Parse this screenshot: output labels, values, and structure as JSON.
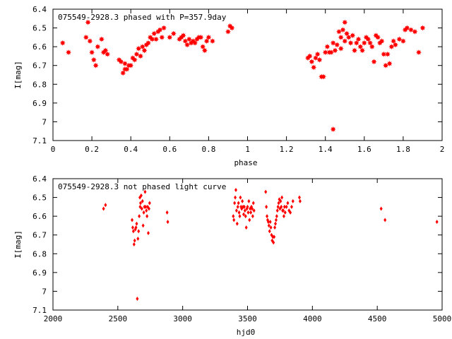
{
  "chart_data": [
    {
      "type": "scatter",
      "title": "075549-2928.3 phased with P=357.9day",
      "xlabel": "phase",
      "ylabel": "I[mag]",
      "xlim": [
        0,
        2
      ],
      "ylim": [
        6.4,
        7.1
      ],
      "y_inverted": true,
      "x_ticks": [
        "0",
        "0.2",
        "0.4",
        "0.6",
        "0.8",
        "1",
        "1.2",
        "1.4",
        "1.6",
        "1.8",
        "2"
      ],
      "y_ticks": [
        "6.4",
        "6.5",
        "6.6",
        "6.7",
        "6.8",
        "6.9",
        "7",
        "7.1"
      ],
      "grid": false,
      "marker": "filled-star",
      "color": "#ff0000",
      "series": [
        {
          "x": [
            0.05,
            0.08,
            0.17,
            0.18,
            0.19,
            0.2,
            0.21,
            0.22,
            0.23,
            0.25,
            0.26,
            0.27,
            0.28,
            0.34,
            0.35,
            0.36,
            0.37,
            0.37,
            0.38,
            0.39,
            0.4,
            0.41,
            0.42,
            0.43,
            0.44,
            0.45,
            0.46,
            0.47,
            0.48,
            0.49,
            0.5,
            0.51,
            0.52,
            0.53,
            0.54,
            0.55,
            0.56,
            0.57,
            0.6,
            0.62,
            0.65,
            0.66,
            0.67,
            0.68,
            0.69,
            0.7,
            0.71,
            0.72,
            0.73,
            0.74,
            0.75,
            0.76,
            0.77,
            0.78,
            0.79,
            0.8,
            0.82,
            0.9,
            0.91,
            0.92,
            1.31,
            1.32,
            1.33,
            1.34,
            1.35,
            1.36,
            1.37,
            1.38,
            1.39,
            1.4,
            1.41,
            1.42,
            1.43,
            1.44,
            1.44,
            1.45,
            1.46,
            1.47,
            1.48,
            1.48,
            1.49,
            1.5,
            1.5,
            1.51,
            1.52,
            1.53,
            1.54,
            1.55,
            1.56,
            1.57,
            1.58,
            1.59,
            1.6,
            1.61,
            1.62,
            1.63,
            1.64,
            1.65,
            1.66,
            1.67,
            1.68,
            1.69,
            1.7,
            1.71,
            1.72,
            1.73,
            1.74,
            1.75,
            1.76,
            1.78,
            1.8,
            1.81,
            1.82,
            1.84,
            1.86,
            1.88,
            1.9
          ],
          "y": [
            6.58,
            6.63,
            6.55,
            6.47,
            6.57,
            6.63,
            6.67,
            6.7,
            6.6,
            6.56,
            6.63,
            6.62,
            6.64,
            6.67,
            6.68,
            6.74,
            6.72,
            6.69,
            6.72,
            6.7,
            6.7,
            6.66,
            6.67,
            6.64,
            6.61,
            6.65,
            6.6,
            6.62,
            6.59,
            6.58,
            6.55,
            6.56,
            6.53,
            6.56,
            6.52,
            6.51,
            6.55,
            6.5,
            6.55,
            6.53,
            6.56,
            6.55,
            6.54,
            6.57,
            6.59,
            6.56,
            6.58,
            6.57,
            6.58,
            6.56,
            6.55,
            6.55,
            6.6,
            6.62,
            6.57,
            6.55,
            6.57,
            6.52,
            6.49,
            6.5,
            6.66,
            6.65,
            6.68,
            6.71,
            6.66,
            6.64,
            6.67,
            6.76,
            6.76,
            6.63,
            6.6,
            6.63,
            6.63,
            7.04,
            6.58,
            6.62,
            6.59,
            6.52,
            6.55,
            6.61,
            6.51,
            6.47,
            6.57,
            6.53,
            6.55,
            6.58,
            6.54,
            6.62,
            6.58,
            6.56,
            6.6,
            6.62,
            6.58,
            6.55,
            6.56,
            6.58,
            6.6,
            6.68,
            6.54,
            6.55,
            6.58,
            6.57,
            6.64,
            6.7,
            6.64,
            6.69,
            6.6,
            6.57,
            6.59,
            6.56,
            6.57,
            6.51,
            6.5,
            6.51,
            6.52,
            6.63,
            6.5
          ]
        }
      ]
    },
    {
      "type": "scatter",
      "title": "075549-2928.3 not phased light curve",
      "xlabel": "hjd0",
      "ylabel": "I[mag]",
      "xlim": [
        2000,
        5000
      ],
      "ylim": [
        6.4,
        7.1
      ],
      "y_inverted": true,
      "x_ticks": [
        "2000",
        "2500",
        "3000",
        "3500",
        "4000",
        "4500",
        "5000"
      ],
      "y_ticks": [
        "6.4",
        "6.5",
        "6.6",
        "6.7",
        "6.8",
        "6.9",
        "7",
        "7.1"
      ],
      "grid": false,
      "marker": "diamond",
      "color": "#ff0000",
      "series": [
        {
          "x": [
            2390,
            2405,
            2610,
            2615,
            2620,
            2625,
            2630,
            2635,
            2640,
            2645,
            2650,
            2655,
            2660,
            2665,
            2670,
            2672,
            2675,
            2680,
            2685,
            2690,
            2695,
            2700,
            2705,
            2710,
            2715,
            2720,
            2725,
            2730,
            2735,
            2740,
            2745,
            2880,
            2885,
            3390,
            3395,
            3400,
            3405,
            3410,
            3415,
            3420,
            3425,
            3430,
            3435,
            3440,
            3445,
            3450,
            3455,
            3460,
            3465,
            3470,
            3475,
            3480,
            3485,
            3490,
            3495,
            3500,
            3505,
            3510,
            3515,
            3520,
            3525,
            3530,
            3535,
            3540,
            3545,
            3550,
            3640,
            3645,
            3650,
            3655,
            3660,
            3665,
            3670,
            3675,
            3680,
            3685,
            3690,
            3695,
            3700,
            3705,
            3710,
            3715,
            3720,
            3725,
            3730,
            3735,
            3740,
            3745,
            3750,
            3755,
            3760,
            3765,
            3770,
            3775,
            3780,
            3785,
            3790,
            3800,
            3810,
            3820,
            3830,
            3840,
            3850,
            3900,
            3905,
            4530,
            4560,
            4960
          ],
          "y": [
            6.56,
            6.54,
            6.62,
            6.66,
            6.68,
            6.75,
            6.73,
            6.67,
            6.66,
            6.64,
            7.04,
            6.72,
            6.68,
            6.6,
            6.5,
            6.55,
            6.53,
            6.49,
            6.56,
            6.52,
            6.65,
            6.58,
            6.55,
            6.47,
            6.55,
            6.57,
            6.6,
            6.55,
            6.69,
            6.56,
            6.53,
            6.58,
            6.63,
            6.6,
            6.62,
            6.53,
            6.5,
            6.46,
            6.57,
            6.64,
            6.55,
            6.53,
            6.58,
            6.6,
            6.5,
            6.55,
            6.56,
            6.52,
            6.55,
            6.59,
            6.55,
            6.57,
            6.6,
            6.66,
            6.56,
            6.55,
            6.58,
            6.52,
            6.62,
            6.56,
            6.58,
            6.55,
            6.56,
            6.6,
            6.53,
            6.57,
            6.47,
            6.55,
            6.6,
            6.62,
            6.63,
            6.65,
            6.68,
            6.63,
            6.66,
            6.7,
            6.73,
            6.71,
            6.74,
            6.71,
            6.66,
            6.64,
            6.62,
            6.6,
            6.57,
            6.55,
            6.53,
            6.51,
            6.56,
            6.52,
            6.55,
            6.5,
            6.57,
            6.57,
            6.6,
            6.55,
            6.58,
            6.55,
            6.53,
            6.57,
            6.58,
            6.55,
            6.52,
            6.5,
            6.52,
            6.56,
            6.62,
            6.63
          ]
        }
      ]
    }
  ]
}
